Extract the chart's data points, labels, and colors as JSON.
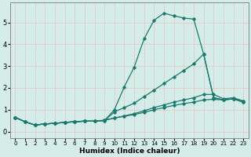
{
  "xlabel": "Humidex (Indice chaleur)",
  "xlim": [
    -0.5,
    23.5
  ],
  "ylim": [
    -0.3,
    5.9
  ],
  "background_color": "#d4ede8",
  "grid_color": "#e8c8c8",
  "line_color": "#1a7a6e",
  "x_ticks": [
    0,
    1,
    2,
    3,
    4,
    5,
    6,
    7,
    8,
    9,
    10,
    11,
    12,
    13,
    14,
    15,
    16,
    17,
    18,
    19,
    20,
    21,
    22,
    23
  ],
  "y_ticks": [
    0,
    1,
    2,
    3,
    4,
    5
  ],
  "line1_x": [
    0,
    1,
    2,
    3,
    4,
    5,
    6,
    7,
    8,
    9,
    10,
    11,
    12,
    13,
    14,
    15,
    16,
    17,
    18,
    19,
    20,
    21,
    22,
    23
  ],
  "line1_y": [
    0.65,
    0.45,
    0.3,
    0.35,
    0.38,
    0.42,
    0.45,
    0.48,
    0.48,
    0.5,
    1.0,
    2.05,
    2.95,
    4.25,
    5.1,
    5.42,
    5.3,
    5.2,
    5.15,
    3.55,
    1.55,
    1.45,
    1.5,
    1.35
  ],
  "line2_x": [
    0,
    1,
    2,
    3,
    4,
    5,
    6,
    7,
    8,
    9,
    10,
    11,
    12,
    13,
    14,
    15,
    16,
    17,
    18,
    19,
    20,
    21,
    22,
    23
  ],
  "line2_y": [
    0.65,
    0.45,
    0.3,
    0.35,
    0.38,
    0.42,
    0.45,
    0.48,
    0.48,
    0.5,
    0.9,
    1.1,
    1.3,
    1.6,
    1.9,
    2.2,
    2.5,
    2.8,
    3.1,
    3.55,
    1.55,
    1.45,
    1.5,
    1.35
  ],
  "line3_x": [
    0,
    1,
    2,
    3,
    4,
    5,
    6,
    7,
    8,
    9,
    10,
    11,
    12,
    13,
    14,
    15,
    16,
    17,
    18,
    19,
    20,
    21,
    22,
    23
  ],
  "line3_y": [
    0.65,
    0.45,
    0.3,
    0.35,
    0.38,
    0.42,
    0.45,
    0.48,
    0.48,
    0.52,
    0.62,
    0.72,
    0.82,
    0.95,
    1.1,
    1.22,
    1.35,
    1.45,
    1.55,
    1.7,
    1.7,
    1.5,
    1.55,
    1.4
  ],
  "line4_x": [
    0,
    1,
    2,
    3,
    4,
    5,
    6,
    7,
    8,
    9,
    10,
    11,
    12,
    13,
    14,
    15,
    16,
    17,
    18,
    19,
    20,
    21,
    22,
    23
  ],
  "line4_y": [
    0.65,
    0.45,
    0.3,
    0.35,
    0.38,
    0.42,
    0.45,
    0.48,
    0.48,
    0.52,
    0.62,
    0.7,
    0.78,
    0.88,
    1.0,
    1.1,
    1.2,
    1.28,
    1.35,
    1.45,
    1.48,
    1.45,
    1.5,
    1.38
  ]
}
